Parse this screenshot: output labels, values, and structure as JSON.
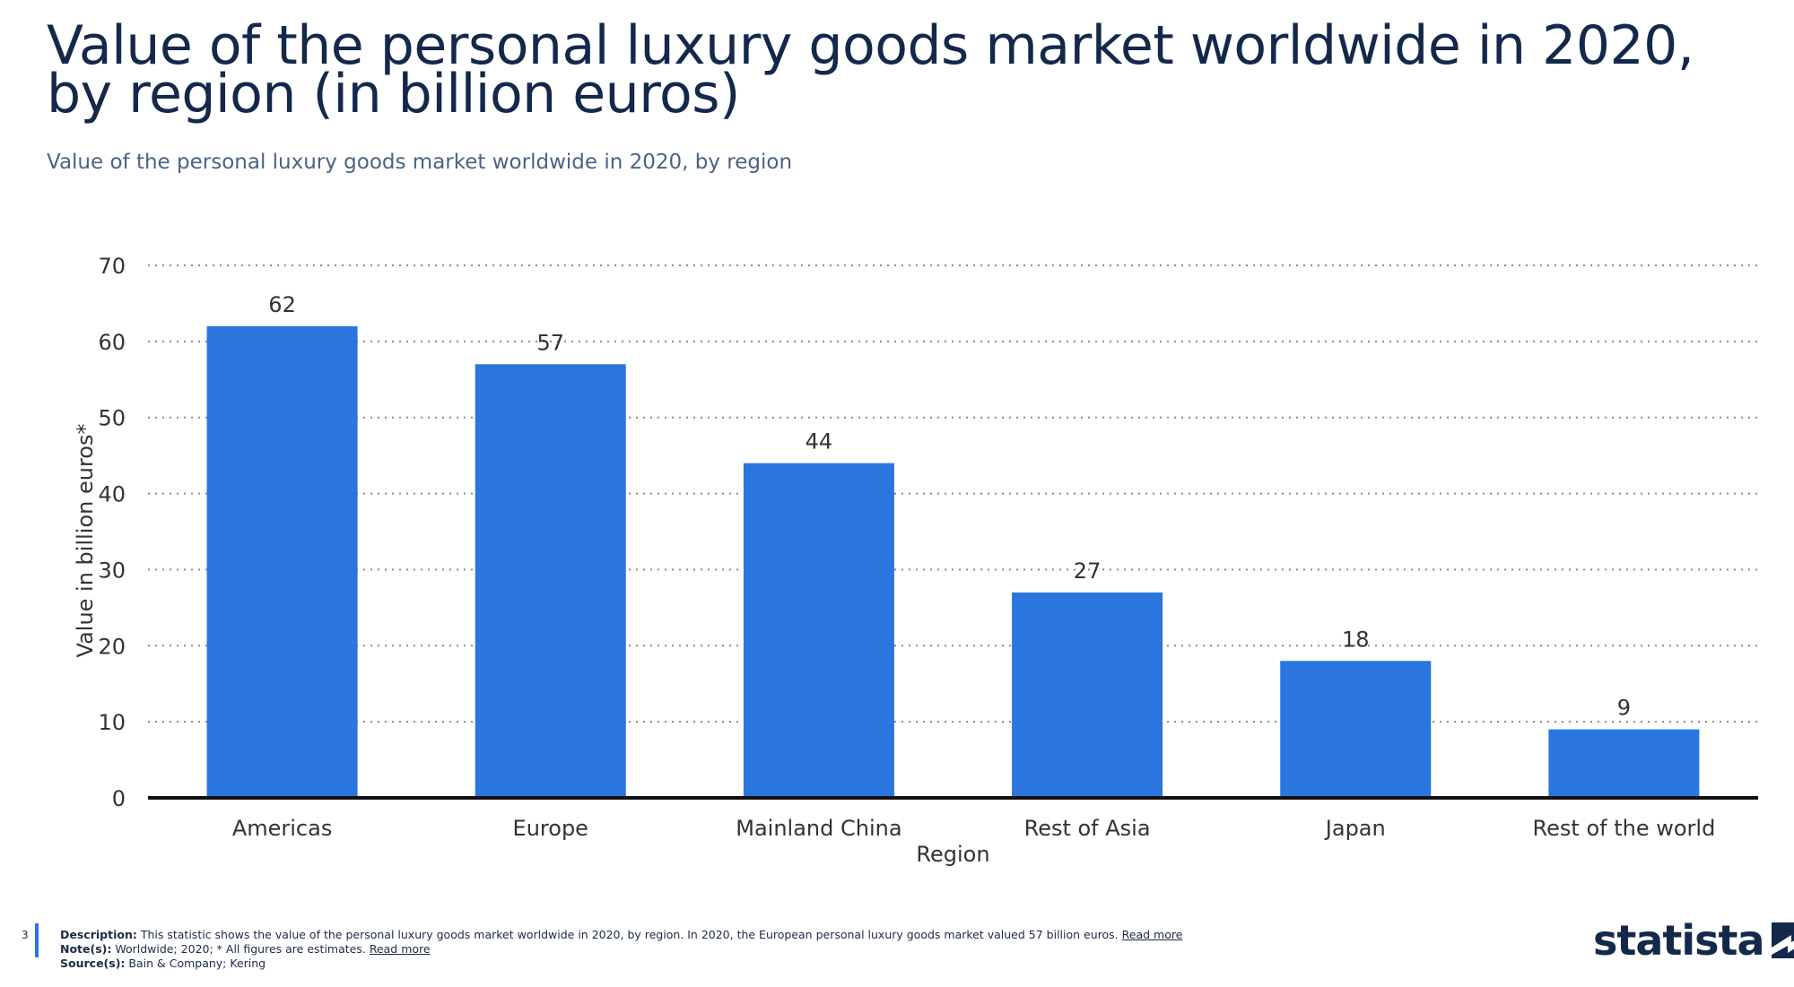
{
  "header": {
    "title": "Value of the personal luxury goods market worldwide in 2020, by region (in billion euros)",
    "subtitle": "Value of the personal luxury goods market worldwide in 2020, by region"
  },
  "chart_data": {
    "type": "bar",
    "title": "Value of the personal luxury goods market worldwide in 2020, by region (in billion euros)",
    "categories": [
      "Americas",
      "Europe",
      "Mainland China",
      "Rest of Asia",
      "Japan",
      "Rest of the world"
    ],
    "values": [
      62,
      57,
      44,
      27,
      18,
      9
    ],
    "xlabel": "Region",
    "ylabel": "Value in billion euros*",
    "ylim": [
      0,
      70
    ],
    "yticks": [
      0,
      10,
      20,
      30,
      40,
      50,
      60,
      70
    ],
    "grid": "dotted horizontal",
    "bar_color": "#2a75de"
  },
  "footer": {
    "page_number": "3",
    "description_label": "Description:",
    "description_text": "This statistic shows the value of the personal luxury goods market worldwide in 2020, by region. In 2020, the European personal luxury goods market valued 57 billion euros.",
    "description_link": "Read more",
    "notes_label": "Note(s):",
    "notes_text": "Worldwide; 2020; * All figures are estimates.",
    "notes_link": "Read more",
    "sources_label": "Source(s):",
    "sources_text": "Bain & Company; Kering"
  },
  "branding": {
    "logo_text": "statista",
    "brand_color": "#14284b"
  }
}
